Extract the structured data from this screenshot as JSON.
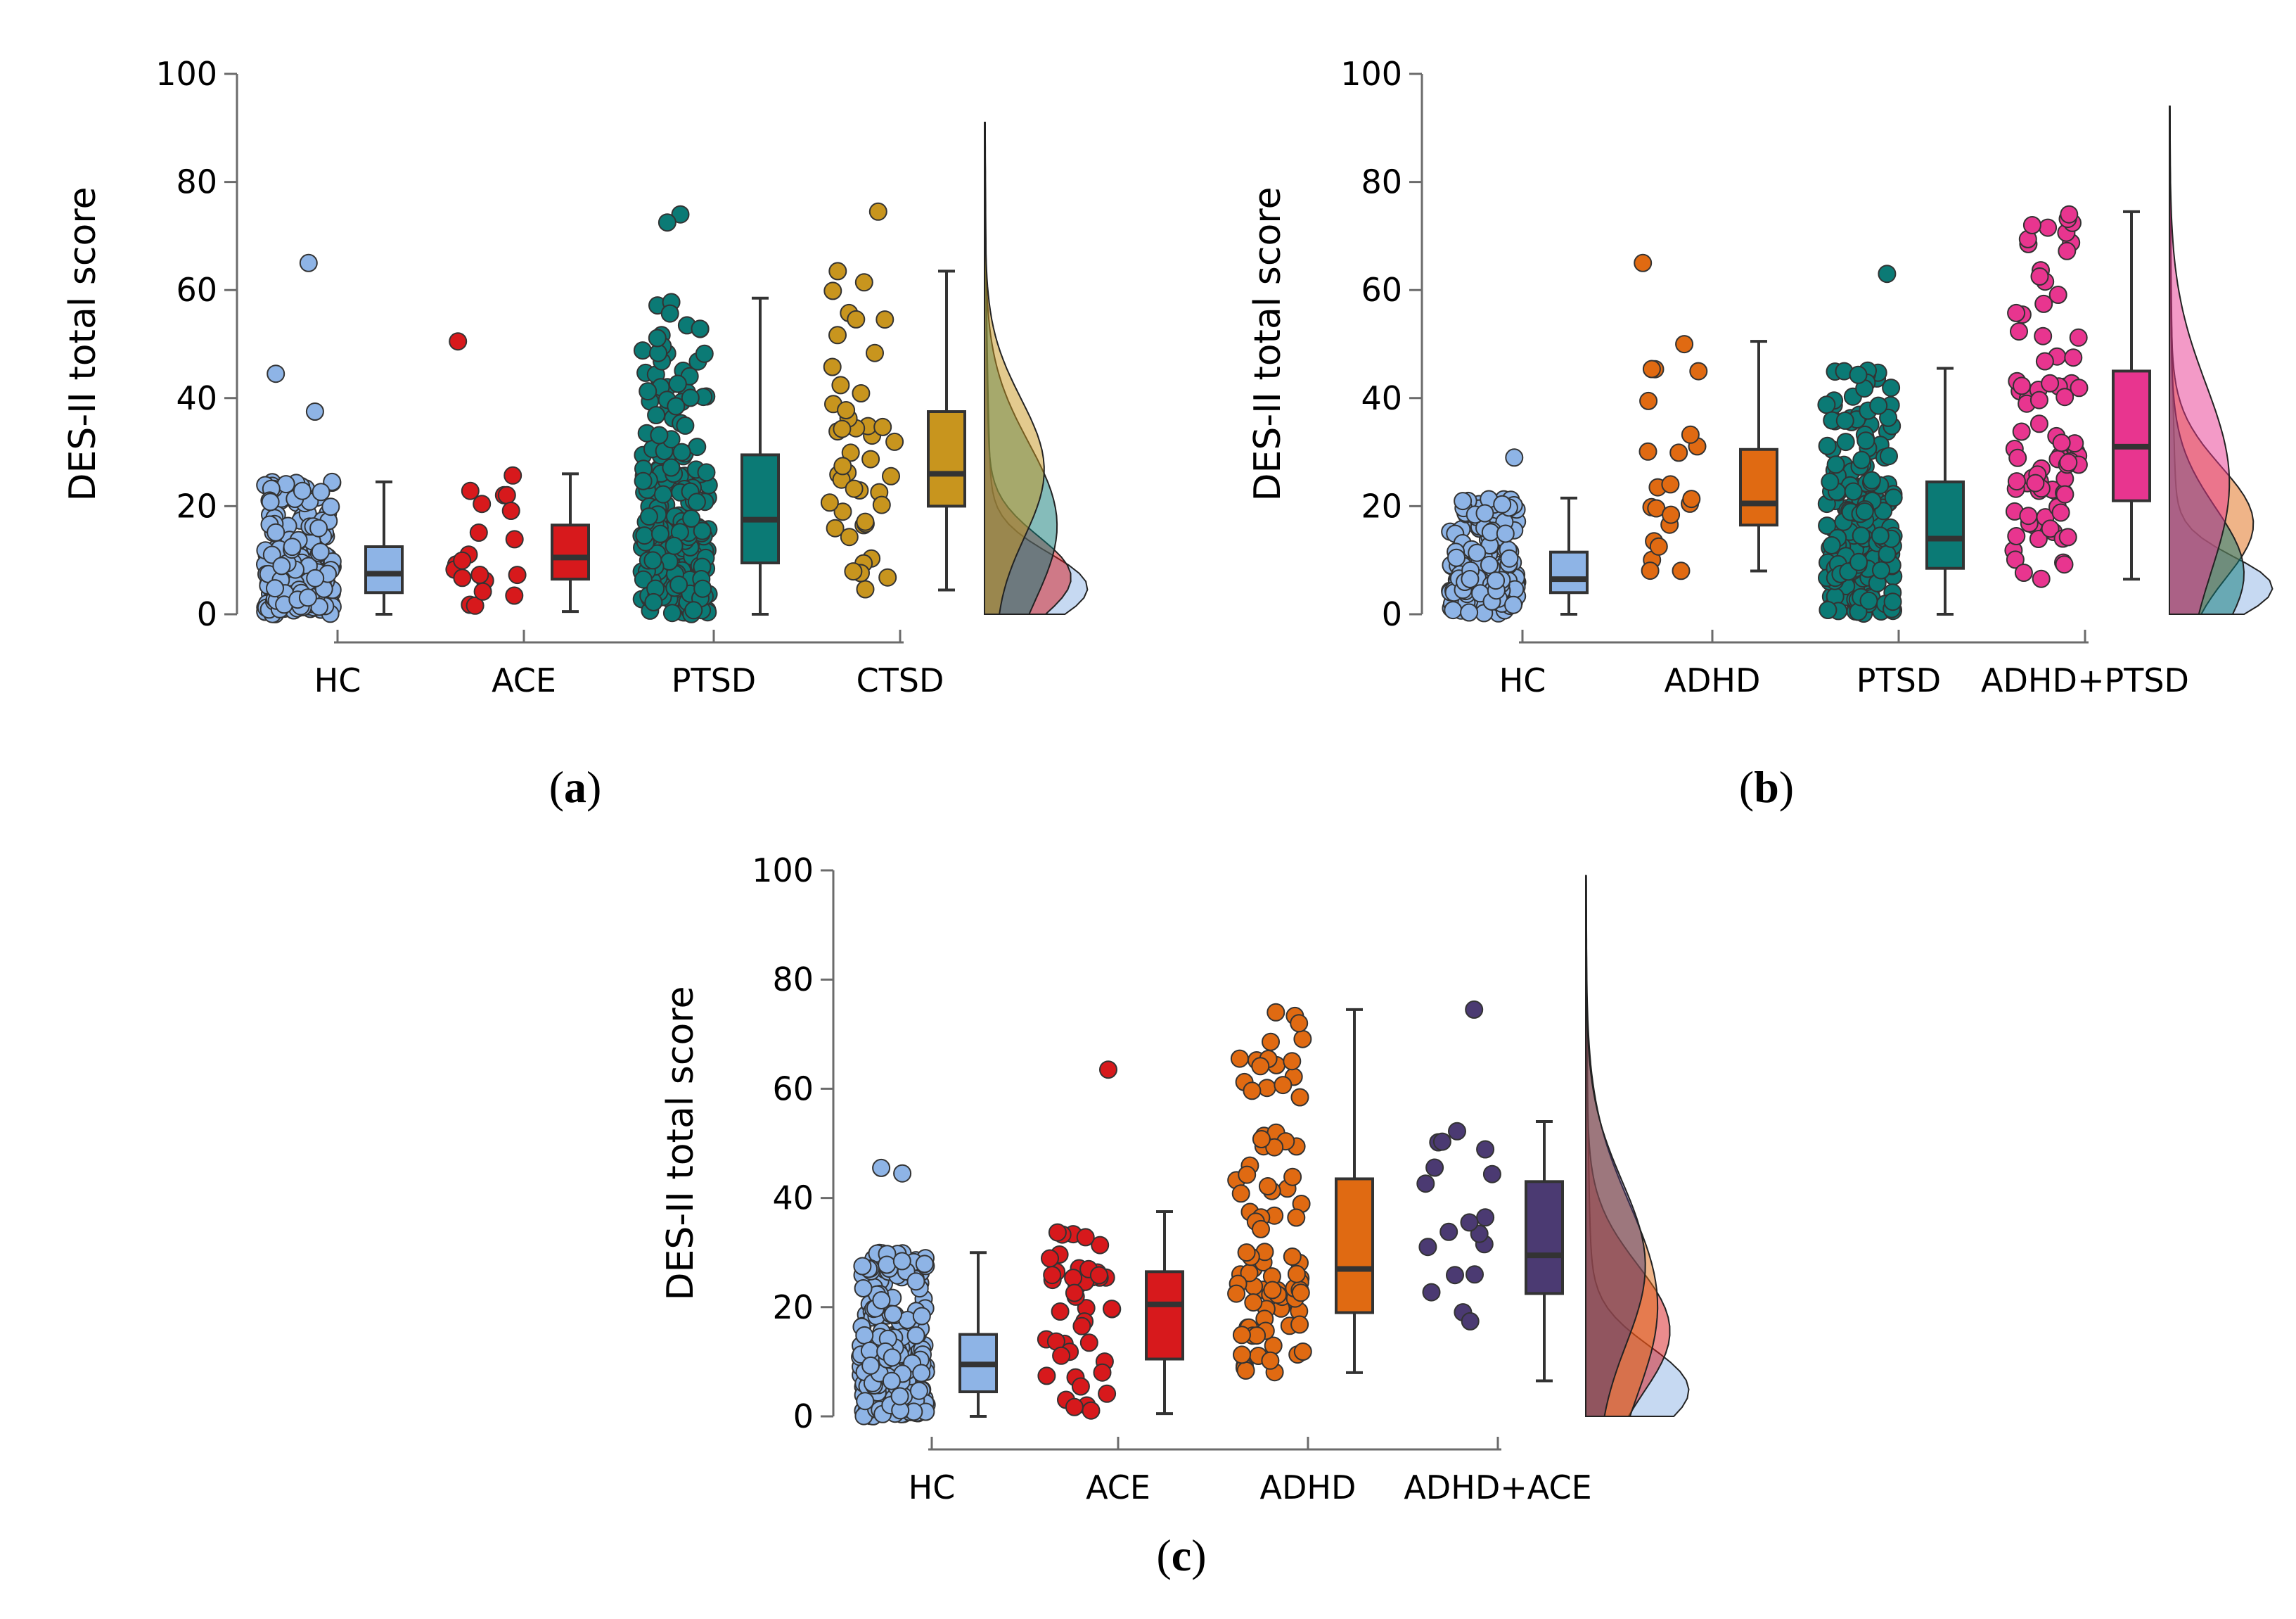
{
  "figure": {
    "panels": [
      "a",
      "b",
      "c"
    ]
  },
  "chart_data": [
    {
      "type": "raincloud",
      "panel_label": "a",
      "title": "",
      "xlabel": "",
      "ylabel": "DES-II total score",
      "ylim": [
        0,
        100
      ],
      "yticks": [
        "0",
        "20",
        "40",
        "60",
        "80",
        "100"
      ],
      "categories": [
        "HC",
        "ACE",
        "PTSD",
        "CTSD"
      ],
      "colors": [
        "#8eb4e6",
        "#d7191c",
        "#0b7a75",
        "#c8951e"
      ],
      "box": [
        {
          "group": "HC",
          "min": 0,
          "q1": 4,
          "median": 7.5,
          "q3": 12.5,
          "max": 24.5
        },
        {
          "group": "ACE",
          "min": 0.5,
          "q1": 6.5,
          "median": 10.5,
          "q3": 16.5,
          "max": 26
        },
        {
          "group": "PTSD",
          "min": 0,
          "q1": 9.5,
          "median": 17.5,
          "q3": 29.5,
          "max": 58.5
        },
        {
          "group": "CTSD",
          "min": 4.5,
          "q1": 20,
          "median": 26,
          "q3": 37.5,
          "max": 63.5
        }
      ],
      "density_modes": [
        5,
        7,
        17,
        27
      ],
      "density_max": [
        91,
        91,
        91,
        91
      ],
      "outliers_shown": {
        "HC": [
          65,
          44.5,
          37.5
        ],
        "ACE": [
          50.5
        ],
        "PTSD": [
          74,
          72.5
        ],
        "CTSD": [
          74.5
        ]
      }
    },
    {
      "type": "raincloud",
      "panel_label": "b",
      "title": "",
      "xlabel": "",
      "ylabel": "DES-II total score",
      "ylim": [
        0,
        100
      ],
      "yticks": [
        "0",
        "20",
        "40",
        "60",
        "80",
        "100"
      ],
      "categories": [
        "HC",
        "ADHD",
        "PTSD",
        "ADHD+PTSD"
      ],
      "colors": [
        "#8eb4e6",
        "#e06a12",
        "#0b7a75",
        "#e8358f"
      ],
      "box": [
        {
          "group": "HC",
          "min": 0,
          "q1": 4,
          "median": 6.5,
          "q3": 11.5,
          "max": 21.5
        },
        {
          "group": "ADHD",
          "min": 8,
          "q1": 16.5,
          "median": 20.5,
          "q3": 30.5,
          "max": 50.5
        },
        {
          "group": "PTSD",
          "min": 0,
          "q1": 8.5,
          "median": 14,
          "q3": 24.5,
          "max": 45.5
        },
        {
          "group": "ADHD+PTSD",
          "min": 6.5,
          "q1": 21,
          "median": 31,
          "q3": 45,
          "max": 74.5
        }
      ],
      "density_modes": [
        5,
        17,
        8,
        25
      ],
      "density_max": [
        94,
        94,
        94,
        94
      ],
      "outliers_shown": {
        "HC": [
          29
        ],
        "ADHD": [
          65
        ],
        "PTSD": [
          63
        ],
        "ADHD+PTSD": [
          74,
          72
        ]
      }
    },
    {
      "type": "raincloud",
      "panel_label": "c",
      "title": "",
      "xlabel": "",
      "ylabel": "DES-II total score",
      "ylim": [
        0,
        100
      ],
      "yticks": [
        "0",
        "20",
        "40",
        "60",
        "80",
        "100"
      ],
      "categories": [
        "HC",
        "ACE",
        "ADHD",
        "ADHD+ACE"
      ],
      "colors": [
        "#8eb4e6",
        "#d7191c",
        "#e06a12",
        "#4b3a72"
      ],
      "box": [
        {
          "group": "HC",
          "min": 0,
          "q1": 4.5,
          "median": 9.5,
          "q3": 15,
          "max": 30
        },
        {
          "group": "ACE",
          "min": 0.5,
          "q1": 10.5,
          "median": 20.5,
          "q3": 26.5,
          "max": 37.5
        },
        {
          "group": "ADHD",
          "min": 8,
          "q1": 19,
          "median": 27,
          "q3": 43.5,
          "max": 74.5
        },
        {
          "group": "ADHD+ACE",
          "min": 6.5,
          "q1": 22.5,
          "median": 29.5,
          "q3": 43,
          "max": 54
        }
      ],
      "density_modes": [
        5,
        16,
        21,
        28
      ],
      "density_max": [
        99,
        99,
        99,
        99
      ],
      "outliers_shown": {
        "HC": [
          45.5,
          44.5
        ],
        "ACE": [
          63.5
        ],
        "ADHD": [
          74,
          72
        ],
        "ADHD+ACE": [
          74.5
        ]
      }
    }
  ]
}
